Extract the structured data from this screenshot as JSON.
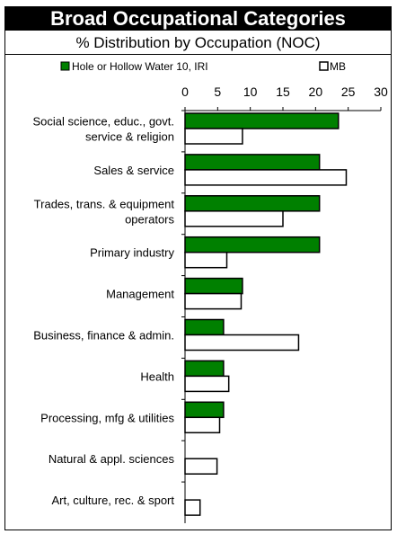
{
  "chart_data": {
    "type": "bar",
    "orientation": "horizontal",
    "title": "Broad Occupational Categories",
    "subtitle": "% Distribution by Occupation (NOC)",
    "categories": [
      [
        "Social science, educ., govt.",
        "service & religion"
      ],
      [
        "Sales & service"
      ],
      [
        "Trades, trans. & equipment",
        "operators"
      ],
      [
        "Primary industry"
      ],
      [
        "Management"
      ],
      [
        "Business, finance & admin."
      ],
      [
        "Health"
      ],
      [
        "Processing, mfg & utilities"
      ],
      [
        "Natural & appl. sciences"
      ],
      [
        "Art, culture, rec. & sport"
      ]
    ],
    "series": [
      {
        "name": "Hole or Hollow Water 10, IRI",
        "color": "#008000",
        "values": [
          23.5,
          20.6,
          20.6,
          20.6,
          8.8,
          5.9,
          5.9,
          5.9,
          0,
          0
        ]
      },
      {
        "name": "MB",
        "color": "#ffffff",
        "values": [
          8.8,
          24.7,
          15.0,
          6.4,
          8.6,
          17.4,
          6.7,
          5.3,
          4.9,
          2.3
        ]
      }
    ],
    "xlim": [
      0,
      30
    ],
    "xticks": [
      0,
      5,
      10,
      15,
      20,
      25,
      30
    ],
    "legend": "top"
  }
}
